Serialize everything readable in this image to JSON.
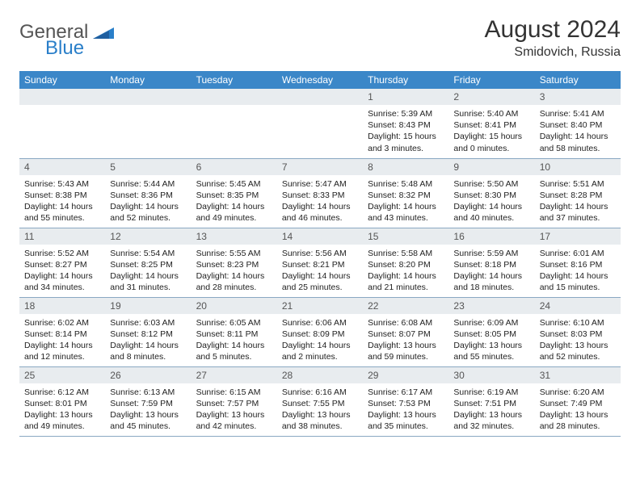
{
  "logo": {
    "part1": "General",
    "part2": "Blue"
  },
  "title": "August 2024",
  "location": "Smidovich, Russia",
  "colors": {
    "header_bg": "#3b87c8",
    "header_fg": "#ffffff",
    "daynum_bg": "#e8ecef",
    "border": "#8aa8c2",
    "logo_blue": "#2a7fc9",
    "logo_gray": "#555555"
  },
  "weekdays": [
    "Sunday",
    "Monday",
    "Tuesday",
    "Wednesday",
    "Thursday",
    "Friday",
    "Saturday"
  ],
  "days": [
    {
      "n": 1,
      "sunrise": "5:39 AM",
      "sunset": "8:43 PM",
      "daylight": "15 hours and 3 minutes."
    },
    {
      "n": 2,
      "sunrise": "5:40 AM",
      "sunset": "8:41 PM",
      "daylight": "15 hours and 0 minutes."
    },
    {
      "n": 3,
      "sunrise": "5:41 AM",
      "sunset": "8:40 PM",
      "daylight": "14 hours and 58 minutes."
    },
    {
      "n": 4,
      "sunrise": "5:43 AM",
      "sunset": "8:38 PM",
      "daylight": "14 hours and 55 minutes."
    },
    {
      "n": 5,
      "sunrise": "5:44 AM",
      "sunset": "8:36 PM",
      "daylight": "14 hours and 52 minutes."
    },
    {
      "n": 6,
      "sunrise": "5:45 AM",
      "sunset": "8:35 PM",
      "daylight": "14 hours and 49 minutes."
    },
    {
      "n": 7,
      "sunrise": "5:47 AM",
      "sunset": "8:33 PM",
      "daylight": "14 hours and 46 minutes."
    },
    {
      "n": 8,
      "sunrise": "5:48 AM",
      "sunset": "8:32 PM",
      "daylight": "14 hours and 43 minutes."
    },
    {
      "n": 9,
      "sunrise": "5:50 AM",
      "sunset": "8:30 PM",
      "daylight": "14 hours and 40 minutes."
    },
    {
      "n": 10,
      "sunrise": "5:51 AM",
      "sunset": "8:28 PM",
      "daylight": "14 hours and 37 minutes."
    },
    {
      "n": 11,
      "sunrise": "5:52 AM",
      "sunset": "8:27 PM",
      "daylight": "14 hours and 34 minutes."
    },
    {
      "n": 12,
      "sunrise": "5:54 AM",
      "sunset": "8:25 PM",
      "daylight": "14 hours and 31 minutes."
    },
    {
      "n": 13,
      "sunrise": "5:55 AM",
      "sunset": "8:23 PM",
      "daylight": "14 hours and 28 minutes."
    },
    {
      "n": 14,
      "sunrise": "5:56 AM",
      "sunset": "8:21 PM",
      "daylight": "14 hours and 25 minutes."
    },
    {
      "n": 15,
      "sunrise": "5:58 AM",
      "sunset": "8:20 PM",
      "daylight": "14 hours and 21 minutes."
    },
    {
      "n": 16,
      "sunrise": "5:59 AM",
      "sunset": "8:18 PM",
      "daylight": "14 hours and 18 minutes."
    },
    {
      "n": 17,
      "sunrise": "6:01 AM",
      "sunset": "8:16 PM",
      "daylight": "14 hours and 15 minutes."
    },
    {
      "n": 18,
      "sunrise": "6:02 AM",
      "sunset": "8:14 PM",
      "daylight": "14 hours and 12 minutes."
    },
    {
      "n": 19,
      "sunrise": "6:03 AM",
      "sunset": "8:12 PM",
      "daylight": "14 hours and 8 minutes."
    },
    {
      "n": 20,
      "sunrise": "6:05 AM",
      "sunset": "8:11 PM",
      "daylight": "14 hours and 5 minutes."
    },
    {
      "n": 21,
      "sunrise": "6:06 AM",
      "sunset": "8:09 PM",
      "daylight": "14 hours and 2 minutes."
    },
    {
      "n": 22,
      "sunrise": "6:08 AM",
      "sunset": "8:07 PM",
      "daylight": "13 hours and 59 minutes."
    },
    {
      "n": 23,
      "sunrise": "6:09 AM",
      "sunset": "8:05 PM",
      "daylight": "13 hours and 55 minutes."
    },
    {
      "n": 24,
      "sunrise": "6:10 AM",
      "sunset": "8:03 PM",
      "daylight": "13 hours and 52 minutes."
    },
    {
      "n": 25,
      "sunrise": "6:12 AM",
      "sunset": "8:01 PM",
      "daylight": "13 hours and 49 minutes."
    },
    {
      "n": 26,
      "sunrise": "6:13 AM",
      "sunset": "7:59 PM",
      "daylight": "13 hours and 45 minutes."
    },
    {
      "n": 27,
      "sunrise": "6:15 AM",
      "sunset": "7:57 PM",
      "daylight": "13 hours and 42 minutes."
    },
    {
      "n": 28,
      "sunrise": "6:16 AM",
      "sunset": "7:55 PM",
      "daylight": "13 hours and 38 minutes."
    },
    {
      "n": 29,
      "sunrise": "6:17 AM",
      "sunset": "7:53 PM",
      "daylight": "13 hours and 35 minutes."
    },
    {
      "n": 30,
      "sunrise": "6:19 AM",
      "sunset": "7:51 PM",
      "daylight": "13 hours and 32 minutes."
    },
    {
      "n": 31,
      "sunrise": "6:20 AM",
      "sunset": "7:49 PM",
      "daylight": "13 hours and 28 minutes."
    }
  ],
  "first_day_index": 4,
  "labels": {
    "sunrise": "Sunrise:",
    "sunset": "Sunset:",
    "daylight": "Daylight:"
  }
}
